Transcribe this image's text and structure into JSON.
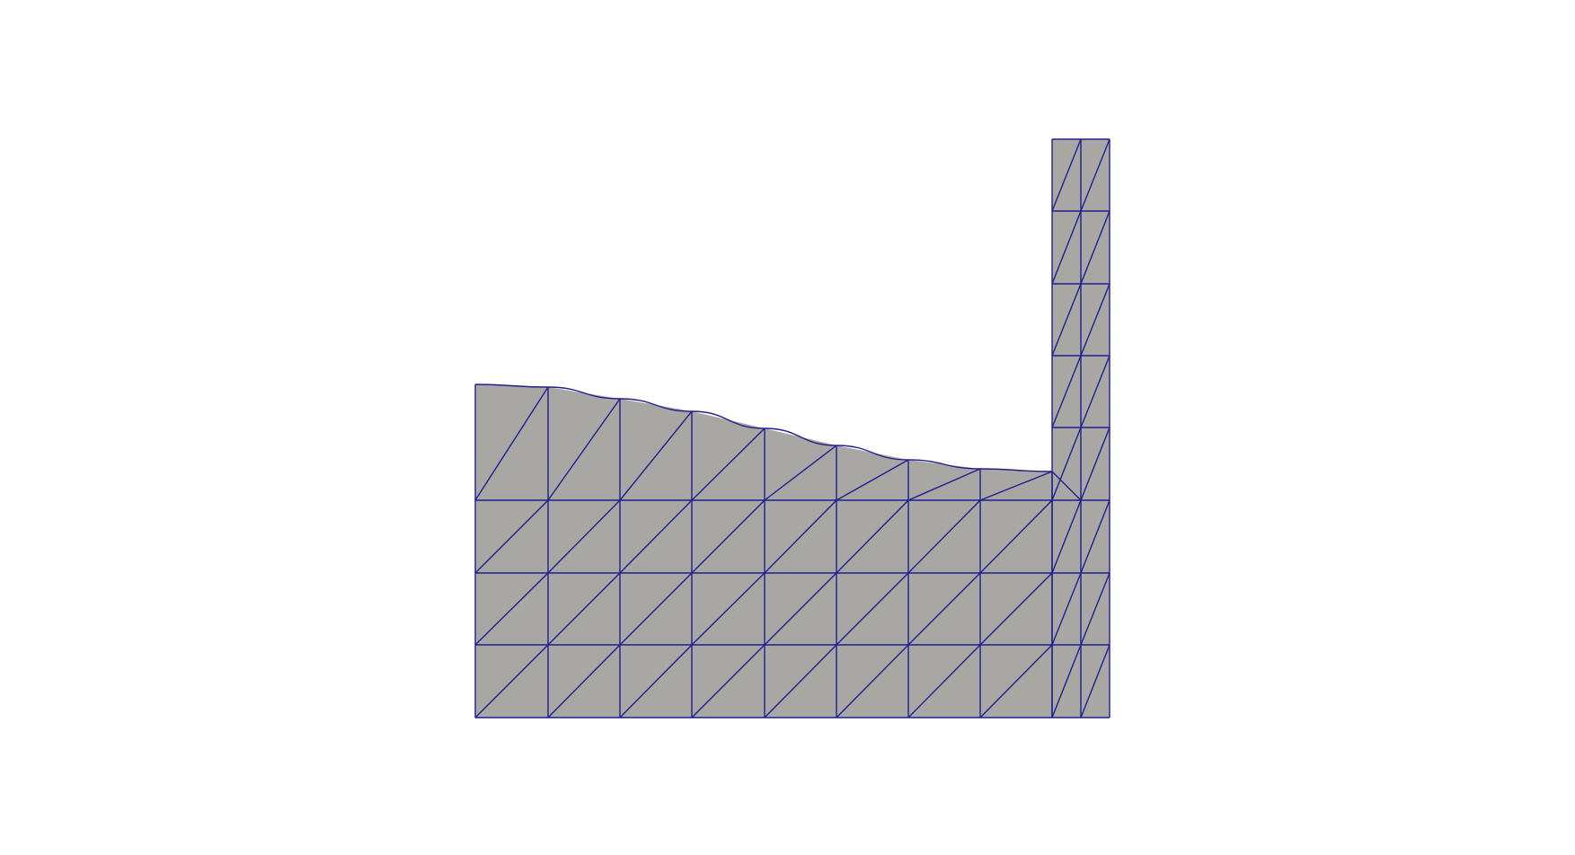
{
  "scene": {
    "background_color": "#ffffff",
    "fill_color": "#a8a7a4",
    "edge_color": "#1f1f8f"
  }
}
